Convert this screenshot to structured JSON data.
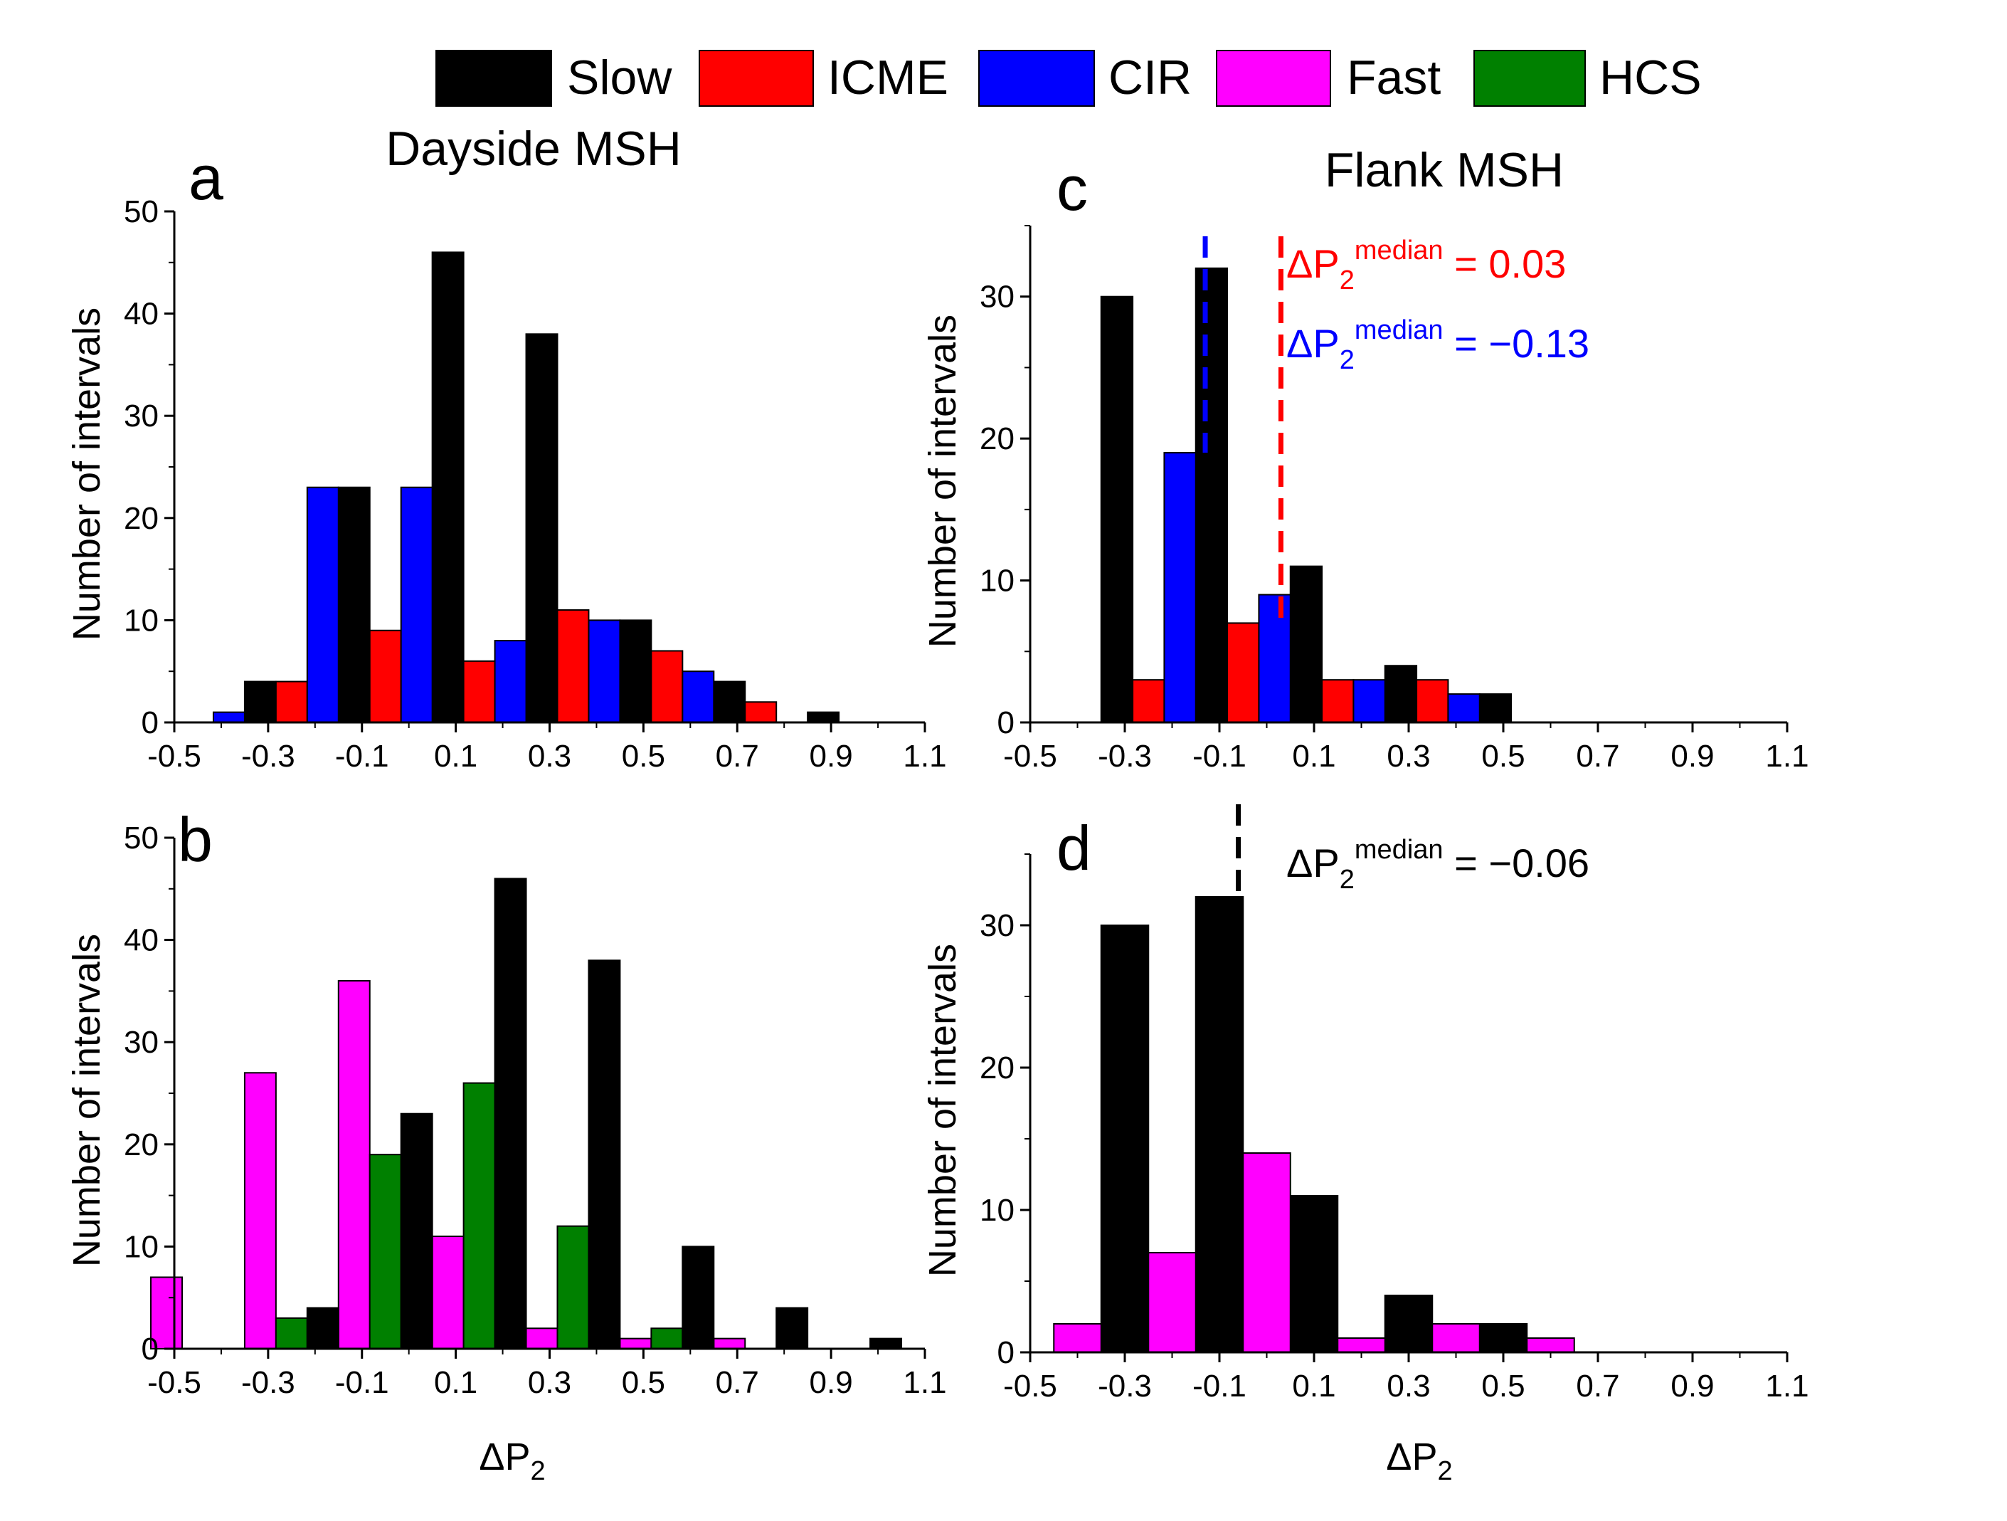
{
  "legend": [
    {
      "label": "Slow",
      "color": "#000000"
    },
    {
      "label": "ICME",
      "color": "#ff0000"
    },
    {
      "label": "CIR",
      "color": "#0000ff"
    },
    {
      "label": "Fast",
      "color": "#ff00ff"
    },
    {
      "label": "HCS",
      "color": "#008000"
    }
  ],
  "titles": {
    "dayside": "Dayside MSH",
    "flank": "Flank MSH"
  },
  "chart_data": [
    {
      "type": "bar",
      "panel": "a",
      "ylabel": "Number of intervals",
      "xlabel": "",
      "xlim": [
        -0.5,
        1.1
      ],
      "ylim": [
        0,
        50
      ],
      "xticks": [
        "-0.5",
        "-0.3",
        "-0.1",
        "0.1",
        "0.3",
        "0.5",
        "0.7",
        "0.9",
        "1.1"
      ],
      "yticks": [
        "0",
        "10",
        "20",
        "30",
        "40",
        "50"
      ],
      "series": [
        {
          "name": "Slow",
          "color": "#000000",
          "x": [
            -0.25,
            -0.05,
            0.15,
            0.35,
            0.55,
            0.75,
            0.95
          ],
          "values": [
            4,
            23,
            46,
            38,
            10,
            4,
            1
          ]
        },
        {
          "name": "ICME",
          "color": "#ff0000",
          "x": [
            -0.25,
            -0.05,
            0.15,
            0.35,
            0.55,
            0.75
          ],
          "values": [
            4,
            9,
            6,
            11,
            7,
            2
          ]
        },
        {
          "name": "CIR",
          "color": "#0000ff",
          "x": [
            -0.45,
            -0.25,
            -0.05,
            0.15,
            0.35,
            0.55
          ],
          "values": [
            1,
            23,
            23,
            8,
            10,
            5
          ]
        }
      ]
    },
    {
      "type": "bar",
      "panel": "b",
      "ylabel": "Number of intervals",
      "xlabel": "ΔP2",
      "xlim": [
        -0.5,
        1.1
      ],
      "ylim": [
        0,
        50
      ],
      "xticks": [
        "-0.5",
        "-0.3",
        "-0.1",
        "0.1",
        "0.3",
        "0.5",
        "0.7",
        "0.9",
        "1.1"
      ],
      "yticks": [
        "0",
        "10",
        "20",
        "30",
        "40",
        "50"
      ],
      "series": [
        {
          "name": "Fast",
          "color": "#ff00ff",
          "x": [
            -0.45,
            -0.25,
            -0.05,
            0.15,
            0.35,
            0.55,
            0.75
          ],
          "values": [
            7,
            27,
            36,
            11,
            2,
            1,
            1
          ]
        },
        {
          "name": "HCS",
          "color": "#008000",
          "x": [
            -0.25,
            -0.05,
            0.15,
            0.35,
            0.55
          ],
          "values": [
            3,
            19,
            26,
            12,
            2
          ]
        },
        {
          "name": "Slow",
          "color": "#000000",
          "x": [
            -0.25,
            -0.05,
            0.15,
            0.35,
            0.55,
            0.75,
            0.95
          ],
          "values": [
            4,
            23,
            46,
            38,
            10,
            4,
            1
          ]
        }
      ]
    },
    {
      "type": "bar",
      "panel": "c",
      "ylabel": "Number of intervals",
      "xlabel": "",
      "xlim": [
        -0.5,
        1.1
      ],
      "ylim": [
        0,
        35
      ],
      "xticks": [
        "-0.5",
        "-0.3",
        "-0.1",
        "0.1",
        "0.3",
        "0.5",
        "0.7",
        "0.9",
        "1.1"
      ],
      "yticks": [
        "0",
        "10",
        "20",
        "30"
      ],
      "series": [
        {
          "name": "Slow",
          "color": "#000000",
          "x": [
            -0.25,
            -0.05,
            0.15,
            0.35,
            0.55
          ],
          "values": [
            30,
            32,
            11,
            4,
            2
          ]
        },
        {
          "name": "ICME",
          "color": "#ff0000",
          "x": [
            -0.25,
            -0.05,
            0.15,
            0.35
          ],
          "values": [
            3,
            7,
            3,
            3
          ]
        },
        {
          "name": "CIR",
          "color": "#0000ff",
          "x": [
            -0.25,
            -0.05,
            0.15,
            0.35
          ],
          "values": [
            19,
            9,
            3,
            2
          ]
        }
      ],
      "median_lines": [
        {
          "value": 0.03,
          "color": "#ff0000",
          "label_prefix": "ΔP",
          "label_sub": "2",
          "label_sup": "median",
          "label_value": " = 0.03"
        },
        {
          "value": -0.13,
          "color": "#0000ff",
          "label_prefix": "ΔP",
          "label_sub": "2",
          "label_sup": "median",
          "label_value": " = −0.13"
        }
      ]
    },
    {
      "type": "bar",
      "panel": "d",
      "ylabel": "Number of intervals",
      "xlabel": "ΔP2",
      "xlim": [
        -0.5,
        1.1
      ],
      "ylim": [
        0,
        35
      ],
      "xticks": [
        "-0.5",
        "-0.3",
        "-0.1",
        "0.1",
        "0.3",
        "0.5",
        "0.7",
        "0.9",
        "1.1"
      ],
      "yticks": [
        "0",
        "10",
        "20",
        "30"
      ],
      "series": [
        {
          "name": "Slow",
          "color": "#000000",
          "x": [
            -0.25,
            -0.05,
            0.15,
            0.35,
            0.55
          ],
          "values": [
            30,
            32,
            11,
            4,
            2
          ]
        },
        {
          "name": "Fast",
          "color": "#ff00ff",
          "x": [
            -0.45,
            -0.25,
            -0.05,
            0.15,
            0.35,
            0.55
          ],
          "values": [
            2,
            7,
            14,
            1,
            2,
            1
          ]
        }
      ],
      "median_lines": [
        {
          "value": -0.06,
          "color": "#000000",
          "label_prefix": "ΔP",
          "label_sub": "2",
          "label_sup": "median",
          "label_value": " = −0.06"
        }
      ]
    }
  ]
}
